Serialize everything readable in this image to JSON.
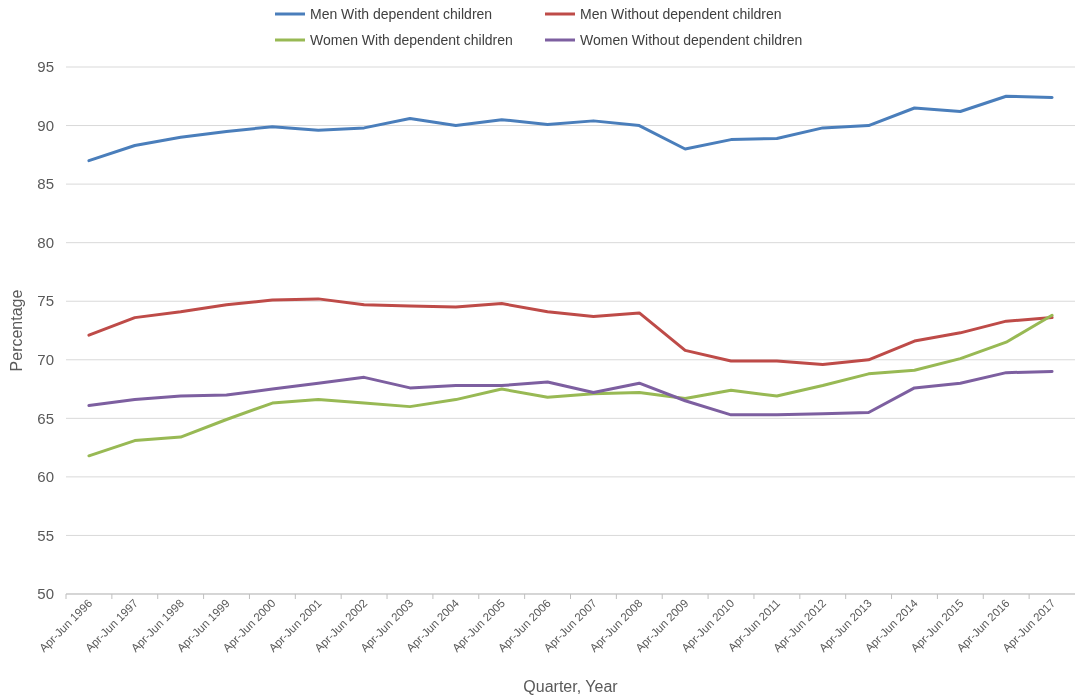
{
  "chart_data": {
    "type": "line",
    "xlabel": "Quarter, Year",
    "ylabel": "Percentage",
    "categories": [
      "Apr-Jun 1996",
      "Apr-Jun 1997",
      "Apr-Jun 1998",
      "Apr-Jun 1999",
      "Apr-Jun 2000",
      "Apr-Jun 2001",
      "Apr-Jun 2002",
      "Apr-Jun 2003",
      "Apr-Jun 2004",
      "Apr-Jun 2005",
      "Apr-Jun 2006",
      "Apr-Jun 2007",
      "Apr-Jun 2008",
      "Apr-Jun 2009",
      "Apr-Jun 2010",
      "Apr-Jun 2011",
      "Apr-Jun 2012",
      "Apr-Jun 2013",
      "Apr-Jun 2014",
      "Apr-Jun 2015",
      "Apr-Jun 2016",
      "Apr-Jun 2017"
    ],
    "series": [
      {
        "name": "Men With dependent children",
        "color": "#4a7ebb",
        "values": [
          87.0,
          88.3,
          89.0,
          89.5,
          89.9,
          89.6,
          89.8,
          90.6,
          90.0,
          90.5,
          90.1,
          90.4,
          90.0,
          88.0,
          88.8,
          88.9,
          89.8,
          90.0,
          91.5,
          91.2,
          92.5,
          92.4
        ]
      },
      {
        "name": "Men Without dependent children",
        "color": "#be4b48",
        "values": [
          72.1,
          73.6,
          74.1,
          74.7,
          75.1,
          75.2,
          74.7,
          74.6,
          74.5,
          74.8,
          74.1,
          73.7,
          74.0,
          70.8,
          69.9,
          69.9,
          69.6,
          70.0,
          71.6,
          72.3,
          73.3,
          73.6
        ]
      },
      {
        "name": "Women With dependent children",
        "color": "#98b954",
        "values": [
          61.8,
          63.1,
          63.4,
          64.9,
          66.3,
          66.6,
          66.3,
          66.0,
          66.6,
          67.5,
          66.8,
          67.1,
          67.2,
          66.7,
          67.4,
          66.9,
          67.8,
          68.8,
          69.1,
          70.1,
          71.5,
          73.8
        ]
      },
      {
        "name": "Women Without dependent children",
        "color": "#7d5fa0",
        "values": [
          66.1,
          66.6,
          66.9,
          67.0,
          67.5,
          68.0,
          68.5,
          67.6,
          67.8,
          67.8,
          68.1,
          67.2,
          68.0,
          66.5,
          65.3,
          65.3,
          65.4,
          65.5,
          67.6,
          68.0,
          68.9,
          69.0
        ]
      }
    ],
    "ylim": [
      50,
      95
    ],
    "yticks": [
      50,
      55,
      60,
      65,
      70,
      75,
      80,
      85,
      90,
      95
    ],
    "grid": "y",
    "legend": "top",
    "marker": "none",
    "line_style": "solid"
  }
}
